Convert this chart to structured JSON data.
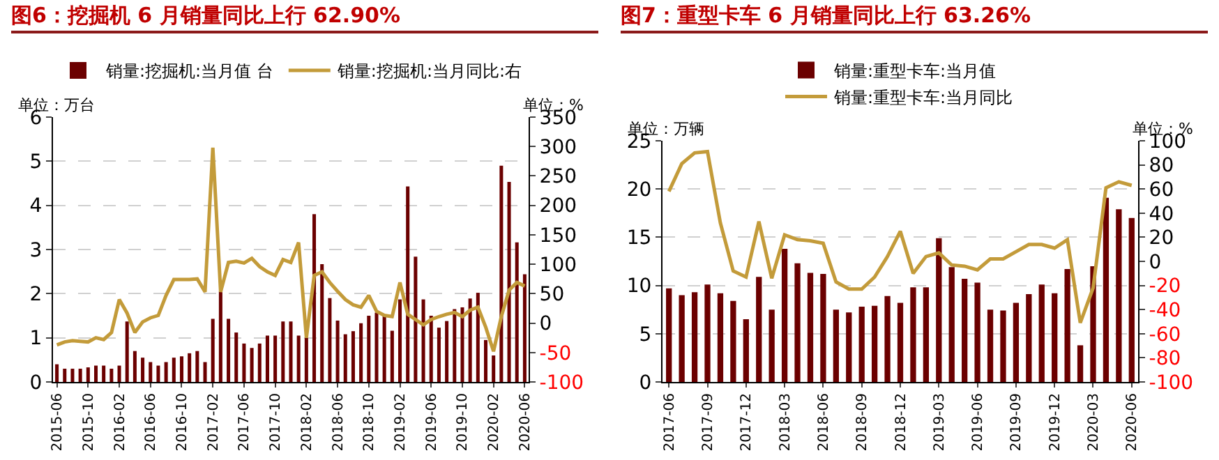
{
  "chart_data": [
    {
      "type": "bar",
      "title": "图6：挖掘机 6 月销量同比上行 62.90%",
      "ylabel": "单位：万台",
      "y2label": "单位：%",
      "categories": [
        "2015-06",
        null,
        null,
        null,
        "2015-10",
        null,
        null,
        null,
        "2016-02",
        null,
        null,
        null,
        "2016-06",
        null,
        null,
        null,
        "2016-10",
        null,
        null,
        null,
        "2017-02",
        null,
        null,
        null,
        "2017-06",
        null,
        null,
        null,
        "2017-10",
        null,
        null,
        null,
        "2018-02",
        null,
        null,
        null,
        "2018-06",
        null,
        null,
        null,
        "2018-10",
        null,
        null,
        null,
        "2019-02",
        null,
        null,
        null,
        "2019-06",
        null,
        null,
        null,
        "2019-10",
        null,
        null,
        null,
        "2020-02",
        null,
        null,
        null,
        "2020-06"
      ],
      "series": [
        {
          "name": "销量:挖掘机:当月值 台",
          "color": "#6b0000",
          "values": [
            0.4,
            0.3,
            0.3,
            0.3,
            0.33,
            0.37,
            0.37,
            0.3,
            0.37,
            1.37,
            0.7,
            0.55,
            0.45,
            0.37,
            0.45,
            0.55,
            0.58,
            0.65,
            0.7,
            0.45,
            1.43,
            2.05,
            1.43,
            1.12,
            0.87,
            0.77,
            0.87,
            1.05,
            1.05,
            1.37,
            1.37,
            1.05,
            1.0,
            3.8,
            2.67,
            1.9,
            1.39,
            1.08,
            1.15,
            1.33,
            1.5,
            1.57,
            1.5,
            1.16,
            1.87,
            4.43,
            2.84,
            1.87,
            1.5,
            1.23,
            1.38,
            1.65,
            1.69,
            1.89,
            2.02,
            0.95,
            0.6,
            4.9,
            4.53,
            3.16,
            2.44
          ]
        },
        {
          "name": "销量:挖掘机:当月同比:右",
          "type": "line",
          "axis": "y2",
          "color": "#c39b3a",
          "values": [
            -37,
            -32,
            -30,
            -31,
            -32,
            -25,
            -28,
            -16,
            40,
            17,
            -16,
            2,
            9,
            13,
            47,
            74,
            74,
            74,
            75,
            53,
            298,
            53,
            103,
            105,
            102,
            110,
            96,
            87,
            81,
            108,
            103,
            137,
            -25,
            81,
            87,
            69,
            54,
            40,
            31,
            27,
            47,
            20,
            13,
            11,
            69,
            15,
            6,
            -3,
            6,
            11,
            15,
            18,
            11,
            22,
            27,
            -7,
            -48,
            11,
            56,
            69,
            63
          ]
        }
      ],
      "ylim": [
        0,
        6
      ],
      "yticks": [
        0,
        1,
        2,
        3,
        4,
        5,
        6
      ],
      "y2lim": [
        -100,
        350
      ],
      "y2ticks": [
        -100,
        -50,
        0,
        50,
        100,
        150,
        200,
        250,
        300,
        350
      ],
      "grid": "y",
      "legend": "top",
      "line_style": "solid",
      "marker": "none"
    },
    {
      "type": "bar",
      "title": "图7：重型卡车 6 月销量同比上行 63.26%",
      "ylabel": "单位：万辆",
      "y2label": "单位：%",
      "categories": [
        "2017-06",
        null,
        null,
        "2017-09",
        null,
        null,
        "2017-12",
        null,
        null,
        "2018-03",
        null,
        null,
        "2018-06",
        null,
        null,
        "2018-09",
        null,
        null,
        "2018-12",
        null,
        null,
        "2019-03",
        null,
        null,
        "2019-06",
        null,
        null,
        "2019-09",
        null,
        null,
        "2019-12",
        null,
        null,
        "2020-03",
        null,
        null,
        "2020-06"
      ],
      "series": [
        {
          "name": "销量:重型卡车:当月值",
          "color": "#6b0000",
          "values": [
            9.7,
            9.0,
            9.3,
            10.1,
            9.2,
            8.4,
            6.5,
            10.9,
            7.5,
            13.8,
            12.3,
            11.3,
            11.2,
            7.5,
            7.2,
            7.8,
            7.9,
            8.9,
            8.2,
            9.8,
            9.8,
            14.9,
            11.9,
            10.7,
            10.3,
            7.5,
            7.4,
            8.2,
            9.1,
            10.1,
            9.2,
            11.7,
            3.8,
            12.0,
            19.1,
            17.9,
            17.0
          ]
        },
        {
          "name": "销量:重型卡车:当月同比",
          "type": "line",
          "axis": "y2",
          "color": "#c39b3a",
          "values": [
            58,
            81,
            90,
            91,
            32,
            -8,
            -13,
            33,
            -14,
            22,
            18,
            17,
            15,
            -17,
            -23,
            -23,
            -13,
            4,
            25,
            -10,
            4,
            7,
            -3,
            -4,
            -7,
            2,
            2,
            8,
            14,
            14,
            11,
            18,
            -51,
            -22,
            61,
            66,
            63
          ]
        }
      ],
      "ylim": [
        0,
        25
      ],
      "yticks": [
        0,
        5,
        10,
        15,
        20,
        25
      ],
      "y2lim": [
        -100,
        100
      ],
      "y2ticks": [
        -100,
        -80,
        -60,
        -40,
        -20,
        0,
        20,
        40,
        60,
        80,
        100
      ],
      "grid": "y",
      "legend": "top",
      "line_style": "solid",
      "marker": "none"
    }
  ]
}
